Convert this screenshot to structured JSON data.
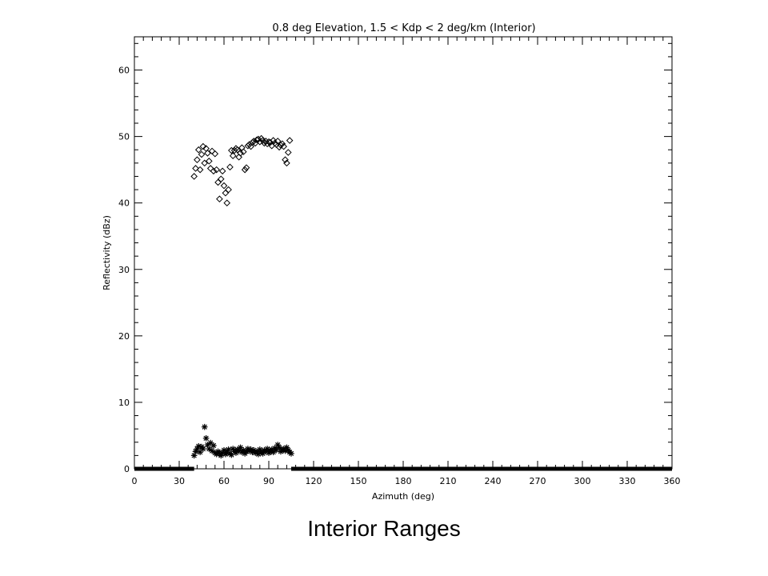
{
  "chart_data": {
    "type": "scatter",
    "title": "0.8 deg Elevation, 1.5 < Kdp < 2 deg/km (Interior)",
    "xlabel": "Azimuth (deg)",
    "ylabel": "Reflectivity (dBz)",
    "xlim": [
      0,
      360
    ],
    "ylim": [
      0,
      65
    ],
    "xticks": [
      "0",
      "30",
      "60",
      "90",
      "120",
      "150",
      "180",
      "210",
      "240",
      "270",
      "300",
      "330",
      "360"
    ],
    "yticks": [
      "0",
      "10",
      "20",
      "30",
      "40",
      "50",
      "60"
    ],
    "grid": false,
    "series": [
      {
        "marker": "diamond",
        "color": "#000000",
        "points": [
          [
            40,
            44.0
          ],
          [
            41,
            45.2
          ],
          [
            42,
            46.5
          ],
          [
            43,
            48.0
          ],
          [
            44,
            45.0
          ],
          [
            45,
            47.3
          ],
          [
            46,
            48.5
          ],
          [
            47,
            46.0
          ],
          [
            48,
            48.2
          ],
          [
            49,
            47.5
          ],
          [
            50,
            46.3
          ],
          [
            51,
            45.2
          ],
          [
            52,
            47.8
          ],
          [
            53,
            44.8
          ],
          [
            54,
            47.4
          ],
          [
            55,
            45.0
          ],
          [
            56,
            43.1
          ],
          [
            57,
            40.6
          ],
          [
            58,
            43.6
          ],
          [
            59,
            44.8
          ],
          [
            60,
            42.6
          ],
          [
            61,
            41.5
          ],
          [
            62,
            40.0
          ],
          [
            63,
            42.0
          ],
          [
            64,
            45.4
          ],
          [
            65,
            47.9
          ],
          [
            66,
            47.1
          ],
          [
            67,
            47.9
          ],
          [
            68,
            48.2
          ],
          [
            69,
            48.0
          ],
          [
            70,
            46.9
          ],
          [
            71,
            47.5
          ],
          [
            72,
            48.3
          ],
          [
            73,
            47.7
          ],
          [
            74,
            45.0
          ],
          [
            75,
            45.3
          ],
          [
            76,
            48.6
          ],
          [
            77,
            48.8
          ],
          [
            78,
            48.5
          ],
          [
            79,
            49.1
          ],
          [
            80,
            49.3
          ],
          [
            81,
            49.0
          ],
          [
            82,
            49.5
          ],
          [
            83,
            49.6
          ],
          [
            84,
            49.2
          ],
          [
            85,
            49.7
          ],
          [
            86,
            49.4
          ],
          [
            87,
            49.0
          ],
          [
            88,
            49.3
          ],
          [
            89,
            48.9
          ],
          [
            90,
            49.2
          ],
          [
            91,
            49.1
          ],
          [
            92,
            48.6
          ],
          [
            93,
            49.4
          ],
          [
            94,
            49.0
          ],
          [
            95,
            48.8
          ],
          [
            96,
            49.3
          ],
          [
            97,
            48.4
          ],
          [
            98,
            48.7
          ],
          [
            99,
            48.9
          ],
          [
            100,
            48.5
          ],
          [
            101,
            46.5
          ],
          [
            102,
            46.0
          ],
          [
            103,
            47.6
          ],
          [
            104,
            49.4
          ]
        ]
      },
      {
        "marker": "asterisk",
        "color": "#000000",
        "points": [
          [
            40,
            2.0
          ],
          [
            41,
            2.6
          ],
          [
            42,
            3.0
          ],
          [
            43,
            3.4
          ],
          [
            44,
            2.5
          ],
          [
            45,
            3.3
          ],
          [
            46,
            3.0
          ],
          [
            47,
            6.3
          ],
          [
            48,
            4.6
          ],
          [
            49,
            3.6
          ],
          [
            50,
            3.0
          ],
          [
            51,
            3.9
          ],
          [
            52,
            2.7
          ],
          [
            53,
            3.5
          ],
          [
            54,
            2.4
          ],
          [
            55,
            2.2
          ],
          [
            56,
            2.6
          ],
          [
            57,
            2.3
          ],
          [
            58,
            2.0
          ],
          [
            59,
            2.4
          ],
          [
            60,
            2.8
          ],
          [
            61,
            2.2
          ],
          [
            62,
            2.5
          ],
          [
            63,
            2.9
          ],
          [
            64,
            2.3
          ],
          [
            65,
            2.1
          ],
          [
            66,
            3.0
          ],
          [
            67,
            2.6
          ],
          [
            68,
            2.4
          ],
          [
            69,
            2.9
          ],
          [
            70,
            2.7
          ],
          [
            71,
            3.2
          ],
          [
            72,
            2.5
          ],
          [
            73,
            2.8
          ],
          [
            74,
            2.3
          ],
          [
            75,
            2.6
          ],
          [
            76,
            3.0
          ],
          [
            77,
            2.7
          ],
          [
            78,
            2.9
          ],
          [
            79,
            2.5
          ],
          [
            80,
            2.8
          ],
          [
            81,
            2.4
          ],
          [
            82,
            2.6
          ],
          [
            83,
            2.2
          ],
          [
            84,
            2.9
          ],
          [
            85,
            2.5
          ],
          [
            86,
            2.3
          ],
          [
            87,
            2.8
          ],
          [
            88,
            2.6
          ],
          [
            89,
            3.0
          ],
          [
            90,
            2.4
          ],
          [
            91,
            2.7
          ],
          [
            92,
            2.9
          ],
          [
            93,
            2.5
          ],
          [
            94,
            3.1
          ],
          [
            95,
            2.8
          ],
          [
            96,
            3.6
          ],
          [
            97,
            3.2
          ],
          [
            98,
            2.6
          ],
          [
            99,
            2.9
          ],
          [
            100,
            3.0
          ],
          [
            101,
            2.7
          ],
          [
            102,
            3.2
          ],
          [
            103,
            2.8
          ],
          [
            104,
            2.5
          ],
          [
            105,
            2.3
          ]
        ]
      },
      {
        "marker": "bar-segment",
        "color": "#000000",
        "points": [
          [
            0,
            0
          ],
          [
            40,
            0
          ],
          [
            105,
            0
          ],
          [
            360,
            0
          ]
        ]
      }
    ]
  },
  "caption": "Interior Ranges"
}
